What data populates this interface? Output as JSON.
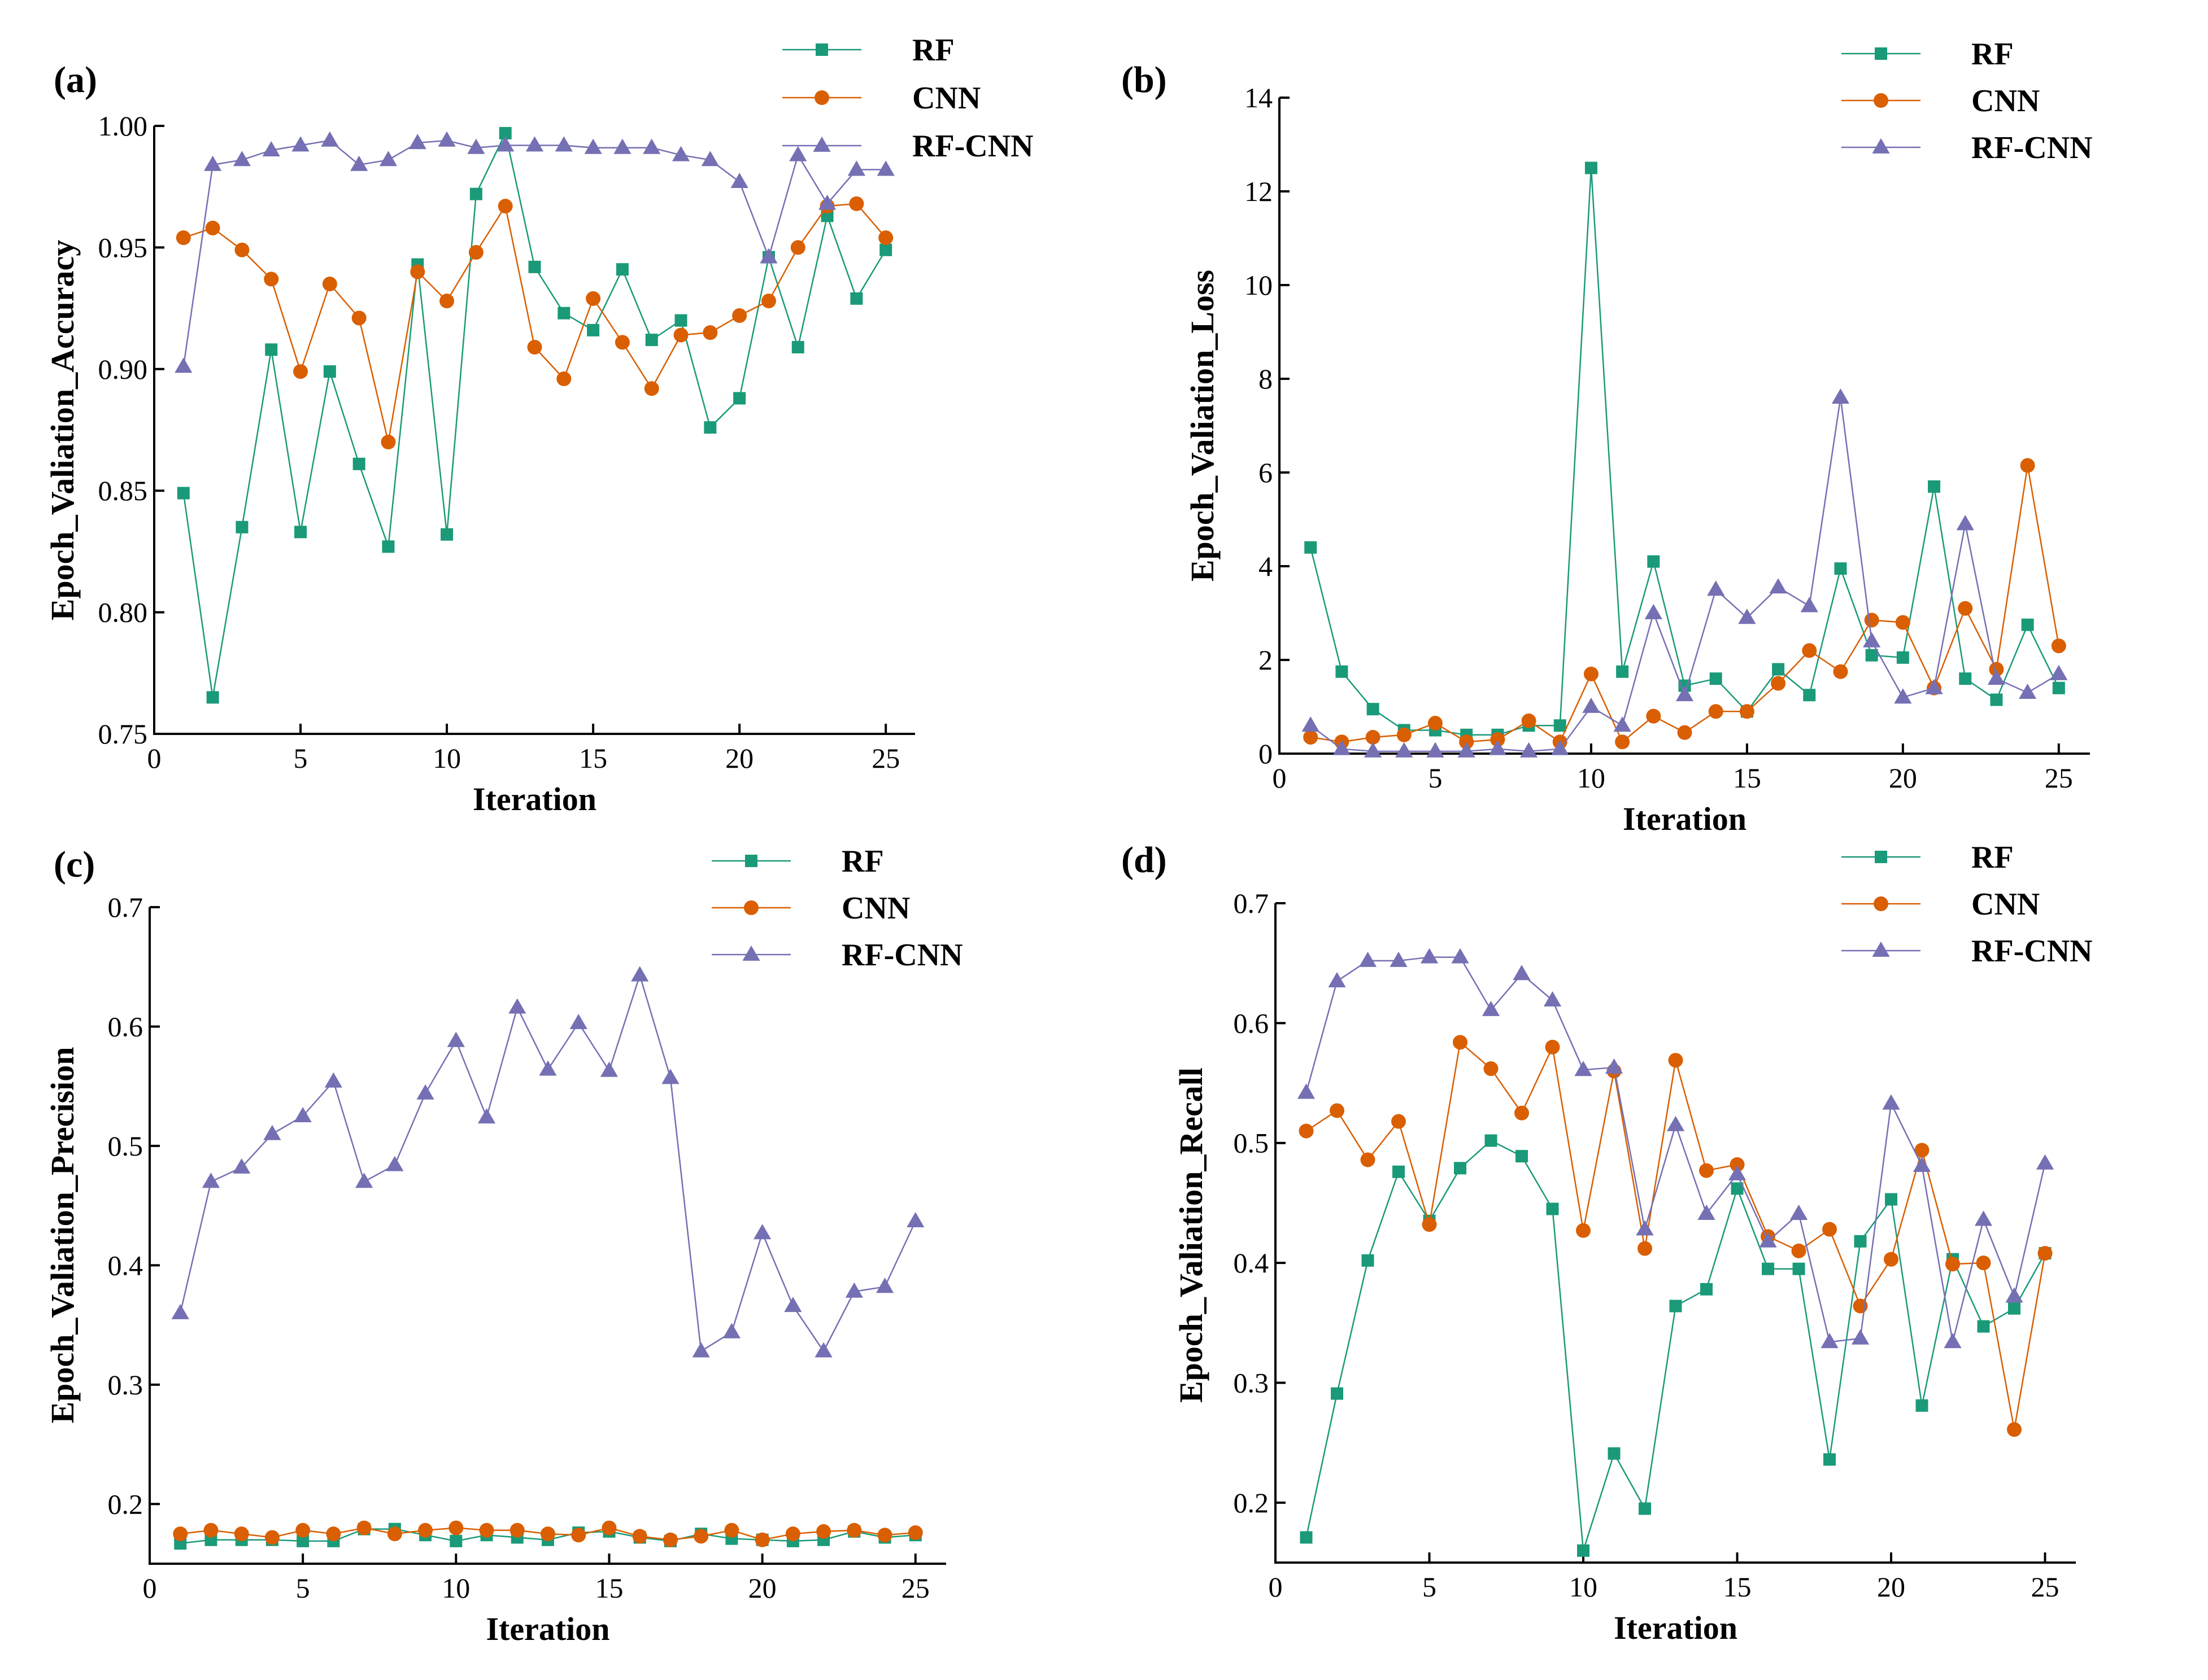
{
  "chart_data": [
    {
      "panel": "(a)",
      "type": "line",
      "xlabel": "Iteration",
      "ylabel": "Epoch_Valiation_Accuracy",
      "xlim": [
        0,
        26
      ],
      "ylim": [
        0.75,
        1.0
      ],
      "xticks": [
        "0",
        "5",
        "10",
        "15",
        "20",
        "25"
      ],
      "yticks": [
        "0.75",
        "0.80",
        "0.85",
        "0.90",
        "0.95",
        "1.00"
      ],
      "legend": "top-right",
      "x": [
        1,
        2,
        3,
        4,
        5,
        6,
        7,
        8,
        9,
        10,
        11,
        12,
        13,
        14,
        15,
        16,
        17,
        18,
        19,
        20,
        21,
        22,
        23,
        24,
        25
      ],
      "series": [
        {
          "name": "RF",
          "values": [
            0.849,
            0.765,
            0.835,
            0.908,
            0.833,
            0.899,
            0.861,
            0.827,
            0.943,
            0.832,
            0.972,
            0.997,
            0.942,
            0.923,
            0.916,
            0.941,
            0.912,
            0.92,
            0.876,
            0.888,
            0.946,
            0.909,
            0.963,
            0.929,
            0.949
          ]
        },
        {
          "name": "CNN",
          "values": [
            0.954,
            0.958,
            0.949,
            0.937,
            0.899,
            0.935,
            0.921,
            0.87,
            0.94,
            0.928,
            0.948,
            0.967,
            0.909,
            0.896,
            0.929,
            0.911,
            0.892,
            0.914,
            0.915,
            0.922,
            0.928,
            0.95,
            0.967,
            0.968,
            0.954
          ]
        },
        {
          "name": "RF-CNN",
          "values": [
            0.901,
            0.984,
            0.986,
            0.99,
            0.992,
            0.994,
            0.984,
            0.986,
            0.993,
            0.994,
            0.991,
            0.992,
            0.992,
            0.992,
            0.991,
            0.991,
            0.991,
            0.988,
            0.986,
            0.977,
            0.946,
            0.988,
            0.968,
            0.982,
            0.982
          ]
        }
      ]
    },
    {
      "panel": "(b)",
      "type": "line",
      "xlabel": "Iteration",
      "ylabel": "Epoch_Valiation_Loss",
      "xlim": [
        0,
        26
      ],
      "ylim": [
        0,
        14
      ],
      "xticks": [
        "0",
        "5",
        "10",
        "15",
        "20",
        "25"
      ],
      "yticks": [
        "0",
        "2",
        "4",
        "6",
        "8",
        "10",
        "12",
        "14"
      ],
      "legend": "top-right",
      "x": [
        1,
        2,
        3,
        4,
        5,
        6,
        7,
        8,
        9,
        10,
        11,
        12,
        13,
        14,
        15,
        16,
        17,
        18,
        19,
        20,
        21,
        22,
        23,
        24,
        25
      ],
      "series": [
        {
          "name": "RF",
          "values": [
            4.4,
            1.75,
            0.95,
            0.5,
            0.5,
            0.4,
            0.4,
            0.6,
            0.6,
            12.5,
            1.75,
            4.1,
            1.45,
            1.6,
            0.9,
            1.8,
            1.25,
            3.95,
            2.1,
            2.05,
            5.7,
            1.6,
            1.15,
            2.75,
            1.4
          ]
        },
        {
          "name": "CNN",
          "values": [
            0.35,
            0.25,
            0.35,
            0.4,
            0.65,
            0.25,
            0.3,
            0.7,
            0.25,
            1.7,
            0.25,
            0.8,
            0.45,
            0.9,
            0.9,
            1.5,
            2.2,
            1.75,
            2.85,
            2.8,
            1.4,
            3.1,
            1.8,
            6.15,
            2.3
          ]
        },
        {
          "name": "RF-CNN",
          "values": [
            0.6,
            0.1,
            0.05,
            0.05,
            0.05,
            0.05,
            0.1,
            0.05,
            0.1,
            1.0,
            0.6,
            3.0,
            1.25,
            3.5,
            2.9,
            3.55,
            3.15,
            7.6,
            2.4,
            1.2,
            1.4,
            4.9,
            1.6,
            1.3,
            1.7
          ]
        }
      ]
    },
    {
      "panel": "(c)",
      "type": "line",
      "xlabel": "Iteration",
      "ylabel": "Epoch_Valiation_Precision",
      "xlim": [
        0,
        26
      ],
      "ylim": [
        0.15,
        0.7
      ],
      "xticks": [
        "0",
        "5",
        "10",
        "15",
        "20",
        "25"
      ],
      "yticks": [
        "0.2",
        "0.3",
        "0.4",
        "0.5",
        "0.6",
        "0.7"
      ],
      "legend": "top-right",
      "x": [
        1,
        2,
        3,
        4,
        5,
        6,
        7,
        8,
        9,
        10,
        11,
        12,
        13,
        14,
        15,
        16,
        17,
        18,
        19,
        20,
        21,
        22,
        23,
        24,
        25
      ],
      "series": [
        {
          "name": "RF",
          "values": [
            0.167,
            0.17,
            0.17,
            0.17,
            0.169,
            0.169,
            0.179,
            0.179,
            0.174,
            0.169,
            0.174,
            0.172,
            0.17,
            0.176,
            0.177,
            0.172,
            0.169,
            0.175,
            0.171,
            0.17,
            0.169,
            0.17,
            0.177,
            0.172,
            0.174
          ]
        },
        {
          "name": "CNN",
          "values": [
            0.175,
            0.178,
            0.175,
            0.172,
            0.178,
            0.175,
            0.18,
            0.175,
            0.178,
            0.18,
            0.178,
            0.178,
            0.175,
            0.174,
            0.18,
            0.173,
            0.17,
            0.173,
            0.178,
            0.17,
            0.175,
            0.177,
            0.178,
            0.174,
            0.176
          ]
        },
        {
          "name": "RF-CNN",
          "values": [
            0.36,
            0.47,
            0.482,
            0.51,
            0.525,
            0.554,
            0.47,
            0.484,
            0.544,
            0.588,
            0.524,
            0.616,
            0.564,
            0.603,
            0.563,
            0.643,
            0.557,
            0.328,
            0.344,
            0.427,
            0.366,
            0.328,
            0.378,
            0.382,
            0.437
          ]
        }
      ]
    },
    {
      "panel": "(d)",
      "type": "line",
      "xlabel": "Iteration",
      "ylabel": "Epoch_Valiation_Recall",
      "xlim": [
        0,
        26
      ],
      "ylim": [
        0.15,
        0.7
      ],
      "xticks": [
        "0",
        "5",
        "10",
        "15",
        "20",
        "25"
      ],
      "yticks": [
        "0.2",
        "0.3",
        "0.4",
        "0.5",
        "0.6",
        "0.7"
      ],
      "legend": "top-right",
      "x": [
        1,
        2,
        3,
        4,
        5,
        6,
        7,
        8,
        9,
        10,
        11,
        12,
        13,
        14,
        15,
        16,
        17,
        18,
        19,
        20,
        21,
        22,
        23,
        24,
        25
      ],
      "series": [
        {
          "name": "RF",
          "values": [
            0.171,
            0.291,
            0.402,
            0.476,
            0.435,
            0.479,
            0.502,
            0.489,
            0.445,
            0.16,
            0.241,
            0.195,
            0.364,
            0.378,
            0.462,
            0.395,
            0.395,
            0.236,
            0.418,
            0.453,
            0.281,
            0.403,
            0.347,
            0.362,
            0.408
          ]
        },
        {
          "name": "CNN",
          "values": [
            0.51,
            0.527,
            0.486,
            0.518,
            0.432,
            0.584,
            0.562,
            0.525,
            0.58,
            0.427,
            0.56,
            0.412,
            0.569,
            0.477,
            0.482,
            0.422,
            0.41,
            0.428,
            0.364,
            0.403,
            0.494,
            0.399,
            0.4,
            0.261,
            0.408
          ]
        },
        {
          "name": "RF-CNN",
          "values": [
            0.542,
            0.635,
            0.652,
            0.652,
            0.655,
            0.655,
            0.611,
            0.641,
            0.619,
            0.561,
            0.563,
            0.428,
            0.515,
            0.441,
            0.474,
            0.418,
            0.441,
            0.334,
            0.337,
            0.533,
            0.481,
            0.334,
            0.436,
            0.372,
            0.483
          ]
        }
      ]
    }
  ],
  "colors": {
    "RF": "#1a9a78",
    "CNN": "#d95f02",
    "RF-CNN": "#7570b3"
  }
}
